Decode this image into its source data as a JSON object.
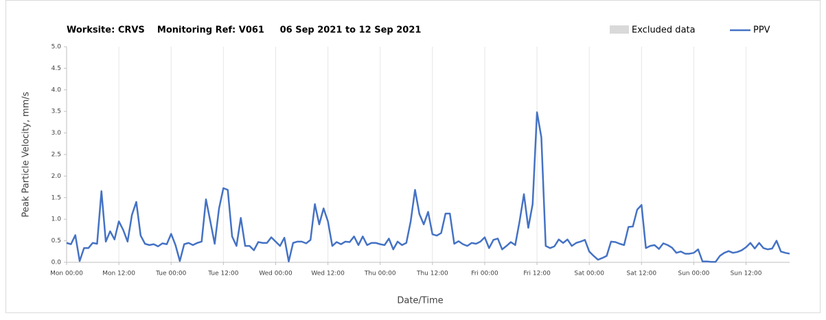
{
  "chart_data": {
    "type": "line",
    "title": "Worksite: CRVS    Monitoring Ref: V061     06 Sep 2021 to 12 Sep 2021",
    "xlabel": "Date/Time",
    "ylabel": "Peak Particle Velocity, mm/s",
    "excluded": {
      "name": "Excluded data",
      "color": "#d9d9d9"
    },
    "x": [
      0,
      1,
      2,
      3,
      4,
      5,
      6,
      7,
      8,
      9,
      10,
      11,
      12,
      13,
      14,
      15,
      16,
      17,
      18,
      19,
      20,
      21,
      22,
      23,
      24,
      25,
      26,
      27,
      28,
      29,
      30,
      31,
      32,
      33,
      34,
      35,
      36,
      37,
      38,
      39,
      40,
      41,
      42,
      43,
      44,
      45,
      46,
      47,
      48,
      49,
      50,
      51,
      52,
      53,
      54,
      55,
      56,
      57,
      58,
      59,
      60,
      61,
      62,
      63,
      64,
      65,
      66,
      67,
      68,
      69,
      70,
      71,
      72,
      73,
      74,
      75,
      76,
      77,
      78,
      79,
      80,
      81,
      82,
      83,
      84,
      85,
      86,
      87,
      88,
      89,
      90,
      91,
      92,
      93,
      94,
      95,
      96,
      97,
      98,
      99,
      100,
      101,
      102,
      103,
      104,
      105,
      106,
      107,
      108,
      109,
      110,
      111,
      112,
      113,
      114,
      115,
      116,
      117,
      118,
      119,
      120,
      121,
      122,
      123,
      124,
      125,
      126,
      127,
      128,
      129,
      130,
      131,
      132,
      133,
      134,
      135,
      136,
      137,
      138,
      139,
      140,
      141,
      142,
      143,
      144,
      145,
      146,
      147,
      148,
      149,
      150,
      151,
      152,
      153,
      154,
      155,
      156,
      157,
      158,
      159,
      160,
      161,
      162,
      163,
      164,
      165,
      166
    ],
    "series": [
      {
        "name": "PPV",
        "color": "#4472c4",
        "values": [
          0.45,
          0.42,
          0.63,
          0.03,
          0.33,
          0.33,
          0.45,
          0.43,
          1.65,
          0.48,
          0.72,
          0.53,
          0.95,
          0.75,
          0.48,
          1.1,
          1.4,
          0.62,
          0.43,
          0.4,
          0.42,
          0.37,
          0.44,
          0.42,
          0.66,
          0.4,
          0.03,
          0.42,
          0.45,
          0.4,
          0.45,
          0.48,
          1.46,
          0.95,
          0.43,
          1.25,
          1.72,
          1.68,
          0.6,
          0.38,
          1.03,
          0.38,
          0.38,
          0.28,
          0.47,
          0.45,
          0.45,
          0.58,
          0.48,
          0.38,
          0.57,
          0.02,
          0.45,
          0.48,
          0.48,
          0.44,
          0.52,
          1.35,
          0.88,
          1.25,
          0.95,
          0.38,
          0.47,
          0.42,
          0.48,
          0.47,
          0.6,
          0.4,
          0.6,
          0.4,
          0.45,
          0.45,
          0.42,
          0.4,
          0.55,
          0.3,
          0.48,
          0.4,
          0.45,
          0.95,
          1.68,
          1.12,
          0.88,
          1.17,
          0.65,
          0.62,
          0.68,
          1.13,
          1.13,
          0.43,
          0.49,
          0.42,
          0.38,
          0.45,
          0.43,
          0.48,
          0.58,
          0.33,
          0.52,
          0.55,
          0.3,
          0.38,
          0.47,
          0.4,
          0.95,
          1.58,
          0.8,
          1.35,
          3.48,
          2.9,
          0.38,
          0.33,
          0.37,
          0.53,
          0.45,
          0.53,
          0.38,
          0.45,
          0.48,
          0.52,
          0.25,
          0.15,
          0.06,
          0.1,
          0.15,
          0.48,
          0.47,
          0.43,
          0.4,
          0.82,
          0.83,
          1.22,
          1.33,
          0.33,
          0.38,
          0.4,
          0.31,
          0.44,
          0.4,
          0.34,
          0.22,
          0.25,
          0.2,
          0.2,
          0.22,
          0.3,
          0.02,
          0.02,
          0.01,
          0.01,
          0.15,
          0.22,
          0.26,
          0.22,
          0.24,
          0.28,
          0.35,
          0.45,
          0.32,
          0.45,
          0.33,
          0.3,
          0.32,
          0.5,
          0.25,
          0.22,
          0.2
        ]
      }
    ],
    "xlim": [
      0,
      166
    ],
    "xticks": [
      {
        "value": 0,
        "label": "Mon 00:00"
      },
      {
        "value": 12,
        "label": "Mon 12:00"
      },
      {
        "value": 24,
        "label": "Tue 00:00"
      },
      {
        "value": 36,
        "label": "Tue 12:00"
      },
      {
        "value": 48,
        "label": "Wed 00:00"
      },
      {
        "value": 60,
        "label": "Wed 12:00"
      },
      {
        "value": 72,
        "label": "Thu 00:00"
      },
      {
        "value": 84,
        "label": "Thu 12:00"
      },
      {
        "value": 96,
        "label": "Fri 00:00"
      },
      {
        "value": 108,
        "label": "Fri 12:00"
      },
      {
        "value": 120,
        "label": "Sat 00:00"
      },
      {
        "value": 132,
        "label": "Sat 12:00"
      },
      {
        "value": 144,
        "label": "Sun 00:00"
      },
      {
        "value": 156,
        "label": "Sun 12:00"
      }
    ],
    "ylim": [
      0,
      5
    ],
    "yticks": [
      {
        "value": 0,
        "label": "0.0"
      },
      {
        "value": 0.5,
        "label": "0.5"
      },
      {
        "value": 1,
        "label": "1.0"
      },
      {
        "value": 1.5,
        "label": "1.5"
      },
      {
        "value": 2,
        "label": "2.0"
      },
      {
        "value": 2.5,
        "label": "2.5"
      },
      {
        "value": 3,
        "label": "3.0"
      },
      {
        "value": 3.5,
        "label": "3.5"
      },
      {
        "value": 4,
        "label": "4.0"
      },
      {
        "value": 4.5,
        "label": "4.5"
      },
      {
        "value": 5,
        "label": "5.0"
      }
    ],
    "grid": "x",
    "legend": "top-right"
  }
}
